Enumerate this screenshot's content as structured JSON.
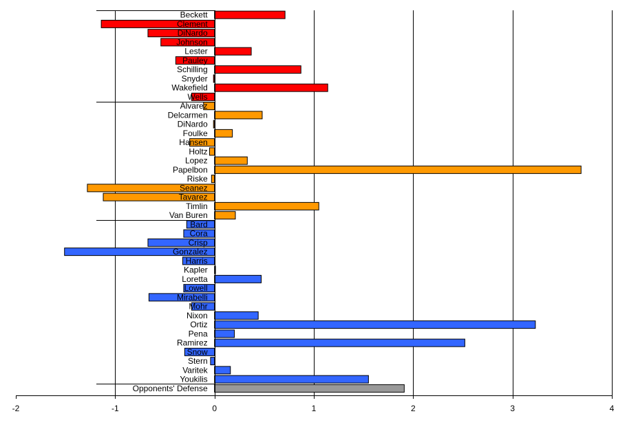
{
  "chart_data": {
    "type": "bar",
    "orientation": "horizontal",
    "title": "",
    "xlabel": "",
    "ylabel": "",
    "xlim": [
      -2,
      4
    ],
    "x_ticks": [
      -2,
      -1,
      0,
      1,
      2,
      3,
      4
    ],
    "grid": {
      "vertical": true,
      "horizontal": false
    },
    "legend": "none",
    "colors": {
      "red": "#ff0000",
      "orange": "#ff9900",
      "blue": "#3366ff",
      "gray": "#999999"
    },
    "categories": [
      "Beckett",
      "Clement",
      "DiNardo",
      "Johnson",
      "Lester",
      "Pauley",
      "Schilling",
      "Snyder",
      "Wakefield",
      "Wells",
      "Alvarez",
      "Delcarmen",
      "DiNardo",
      "Foulke",
      "Hansen",
      "Holtz",
      "Lopez",
      "Papelbon",
      "Riske",
      "Seanez",
      "Tavarez",
      "Timlin",
      "Van Buren",
      "Bard",
      "Cora",
      "Crisp",
      "Gonzalez",
      "Harris",
      "Kapler",
      "Loretta",
      "Lowell",
      "Mirabelli",
      "Mohr",
      "Nixon",
      "Ortiz",
      "Pena",
      "Ramirez",
      "Snow",
      "Stern",
      "Varitek",
      "Youkilis",
      "Opponents' Defense"
    ],
    "values": [
      0.71,
      -1.14,
      -0.67,
      -0.54,
      0.37,
      -0.39,
      0.87,
      -0.01,
      1.14,
      -0.23,
      -0.11,
      0.48,
      -0.01,
      0.18,
      -0.25,
      -0.05,
      0.33,
      3.69,
      -0.03,
      -1.28,
      -1.12,
      1.05,
      0.21,
      -0.28,
      -0.31,
      -0.67,
      -1.51,
      -0.32,
      0.01,
      0.47,
      -0.31,
      -0.66,
      -0.23,
      0.44,
      3.23,
      0.2,
      2.52,
      -0.3,
      -0.04,
      0.16,
      1.55,
      1.91
    ],
    "groups": [
      "red",
      "red",
      "red",
      "red",
      "red",
      "red",
      "red",
      "red",
      "red",
      "red",
      "orange",
      "orange",
      "orange",
      "orange",
      "orange",
      "orange",
      "orange",
      "orange",
      "orange",
      "orange",
      "orange",
      "orange",
      "orange",
      "blue",
      "blue",
      "blue",
      "blue",
      "blue",
      "blue",
      "blue",
      "blue",
      "blue",
      "blue",
      "blue",
      "blue",
      "blue",
      "blue",
      "blue",
      "blue",
      "blue",
      "blue",
      "gray"
    ]
  }
}
